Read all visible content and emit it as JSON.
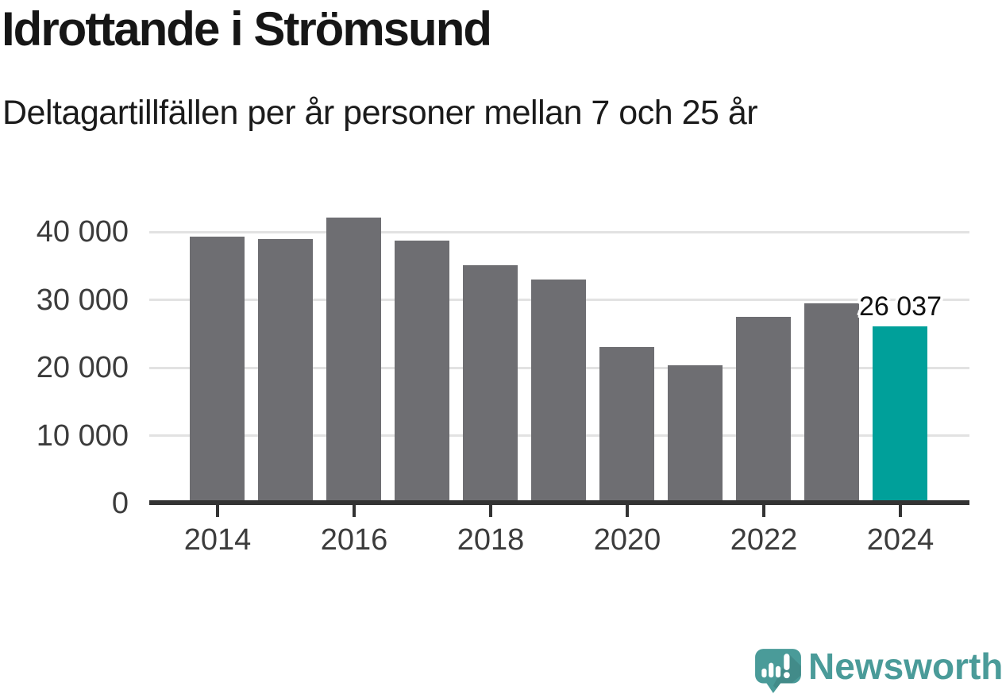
{
  "header": {
    "title": "Idrottande i Strömsund",
    "subtitle": "Deltagartillfällen per år personer mellan 7 och 25 år"
  },
  "chart_data": {
    "type": "bar",
    "title": "Idrottande i Strömsund",
    "subtitle": "Deltagartillfällen per år personer mellan 7 och 25 år",
    "categories": [
      "2014",
      "2015",
      "2016",
      "2017",
      "2018",
      "2019",
      "2020",
      "2021",
      "2022",
      "2023",
      "2024"
    ],
    "values": [
      39300,
      38900,
      42100,
      38700,
      35100,
      33000,
      23000,
      20300,
      27500,
      29500,
      26037
    ],
    "highlight_index": 10,
    "annotation": {
      "text": "26 037",
      "index": 10,
      "value": 26037
    },
    "xlabel": "",
    "ylabel": "",
    "ylim": [
      0,
      44200
    ],
    "grid": "horizontal",
    "legend": "none",
    "y_ticks": [
      {
        "value": 0,
        "label": "0"
      },
      {
        "value": 10000,
        "label": "10 000"
      },
      {
        "value": 20000,
        "label": "20 000"
      },
      {
        "value": 30000,
        "label": "30 000"
      },
      {
        "value": 40000,
        "label": "40 000"
      }
    ],
    "x_tick_labels": [
      "2014",
      "2016",
      "2018",
      "2020",
      "2022",
      "2024"
    ],
    "colors": {
      "bar": "#6e6e72",
      "highlight": "#00a09a",
      "grid": "#e2e2e2",
      "axis": "#333333",
      "label": "#3c3c3c",
      "logo": "#4a9b99"
    }
  },
  "footer": {
    "brand": "Newsworthy"
  }
}
